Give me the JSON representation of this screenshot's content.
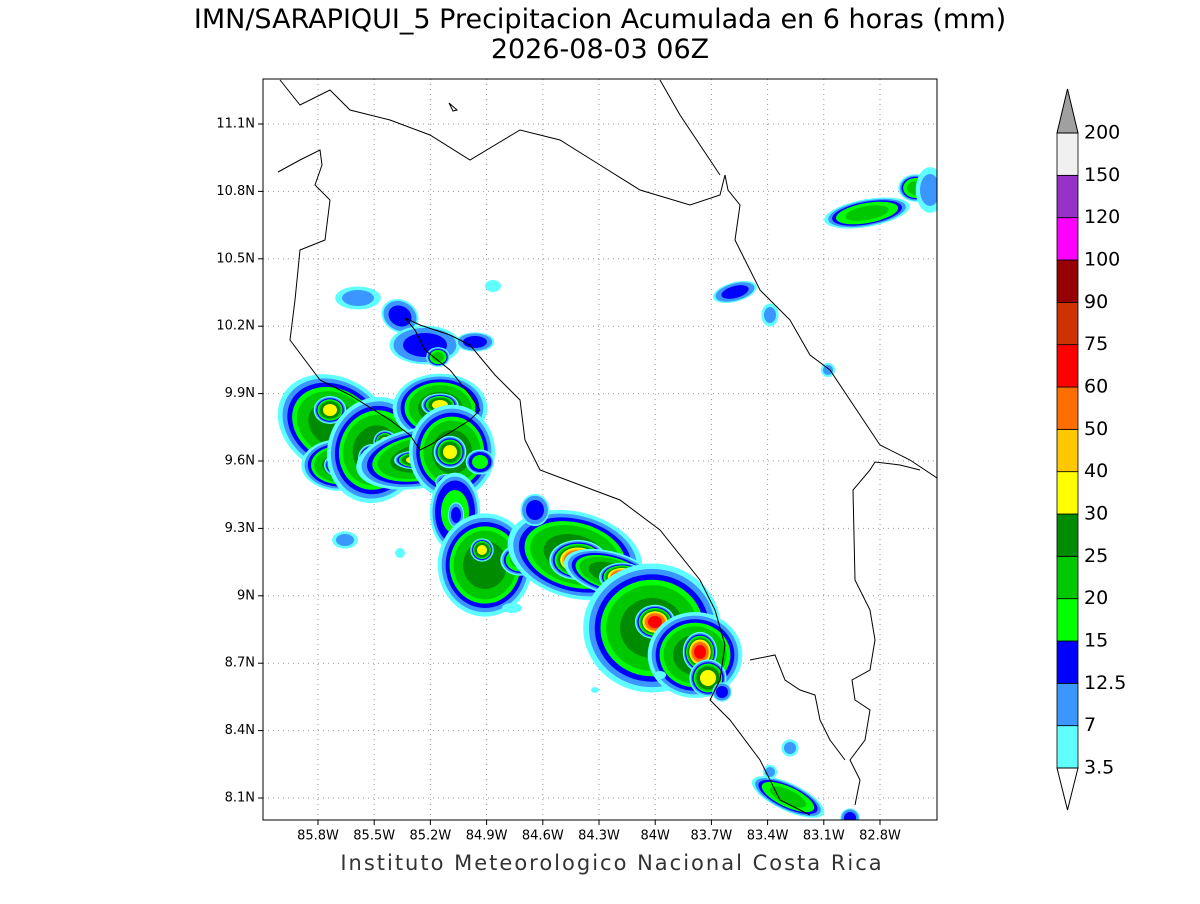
{
  "header": {
    "title": "IMN/SARAPIQUI_5 Precipitacion Acumulada en 6 horas (mm)",
    "subtitle": "2026-08-03 06Z"
  },
  "map": {
    "x_labels": [
      "85.8W",
      "85.5W",
      "85.2W",
      "84.9W",
      "84.6W",
      "84.3W",
      "84W",
      "83.7W",
      "83.4W",
      "83.1W",
      "82.8W"
    ],
    "y_labels": [
      "11.1N",
      "10.8N",
      "10.5N",
      "10.2N",
      "9.9N",
      "9.6N",
      "9.3N",
      "9N",
      "8.7N",
      "8.4N",
      "8.1N"
    ]
  },
  "colorbar": {
    "levels": [
      3.5,
      7,
      12.5,
      15,
      20,
      25,
      30,
      40,
      50,
      60,
      75,
      90,
      100,
      120,
      150,
      200
    ],
    "colors": [
      "#60ffff",
      "#3c96ff",
      "#0000ff",
      "#00ff00",
      "#00c800",
      "#008c00",
      "#ffff00",
      "#ffc800",
      "#ff6e00",
      "#ff0000",
      "#cd3200",
      "#960000",
      "#ff00ff",
      "#9632c8",
      "#f0f0f0"
    ],
    "over_color": "#a0a0a0",
    "under_color": "#ffffff"
  },
  "footer": "Instituto Meteorologico Nacional Costa Rica"
}
